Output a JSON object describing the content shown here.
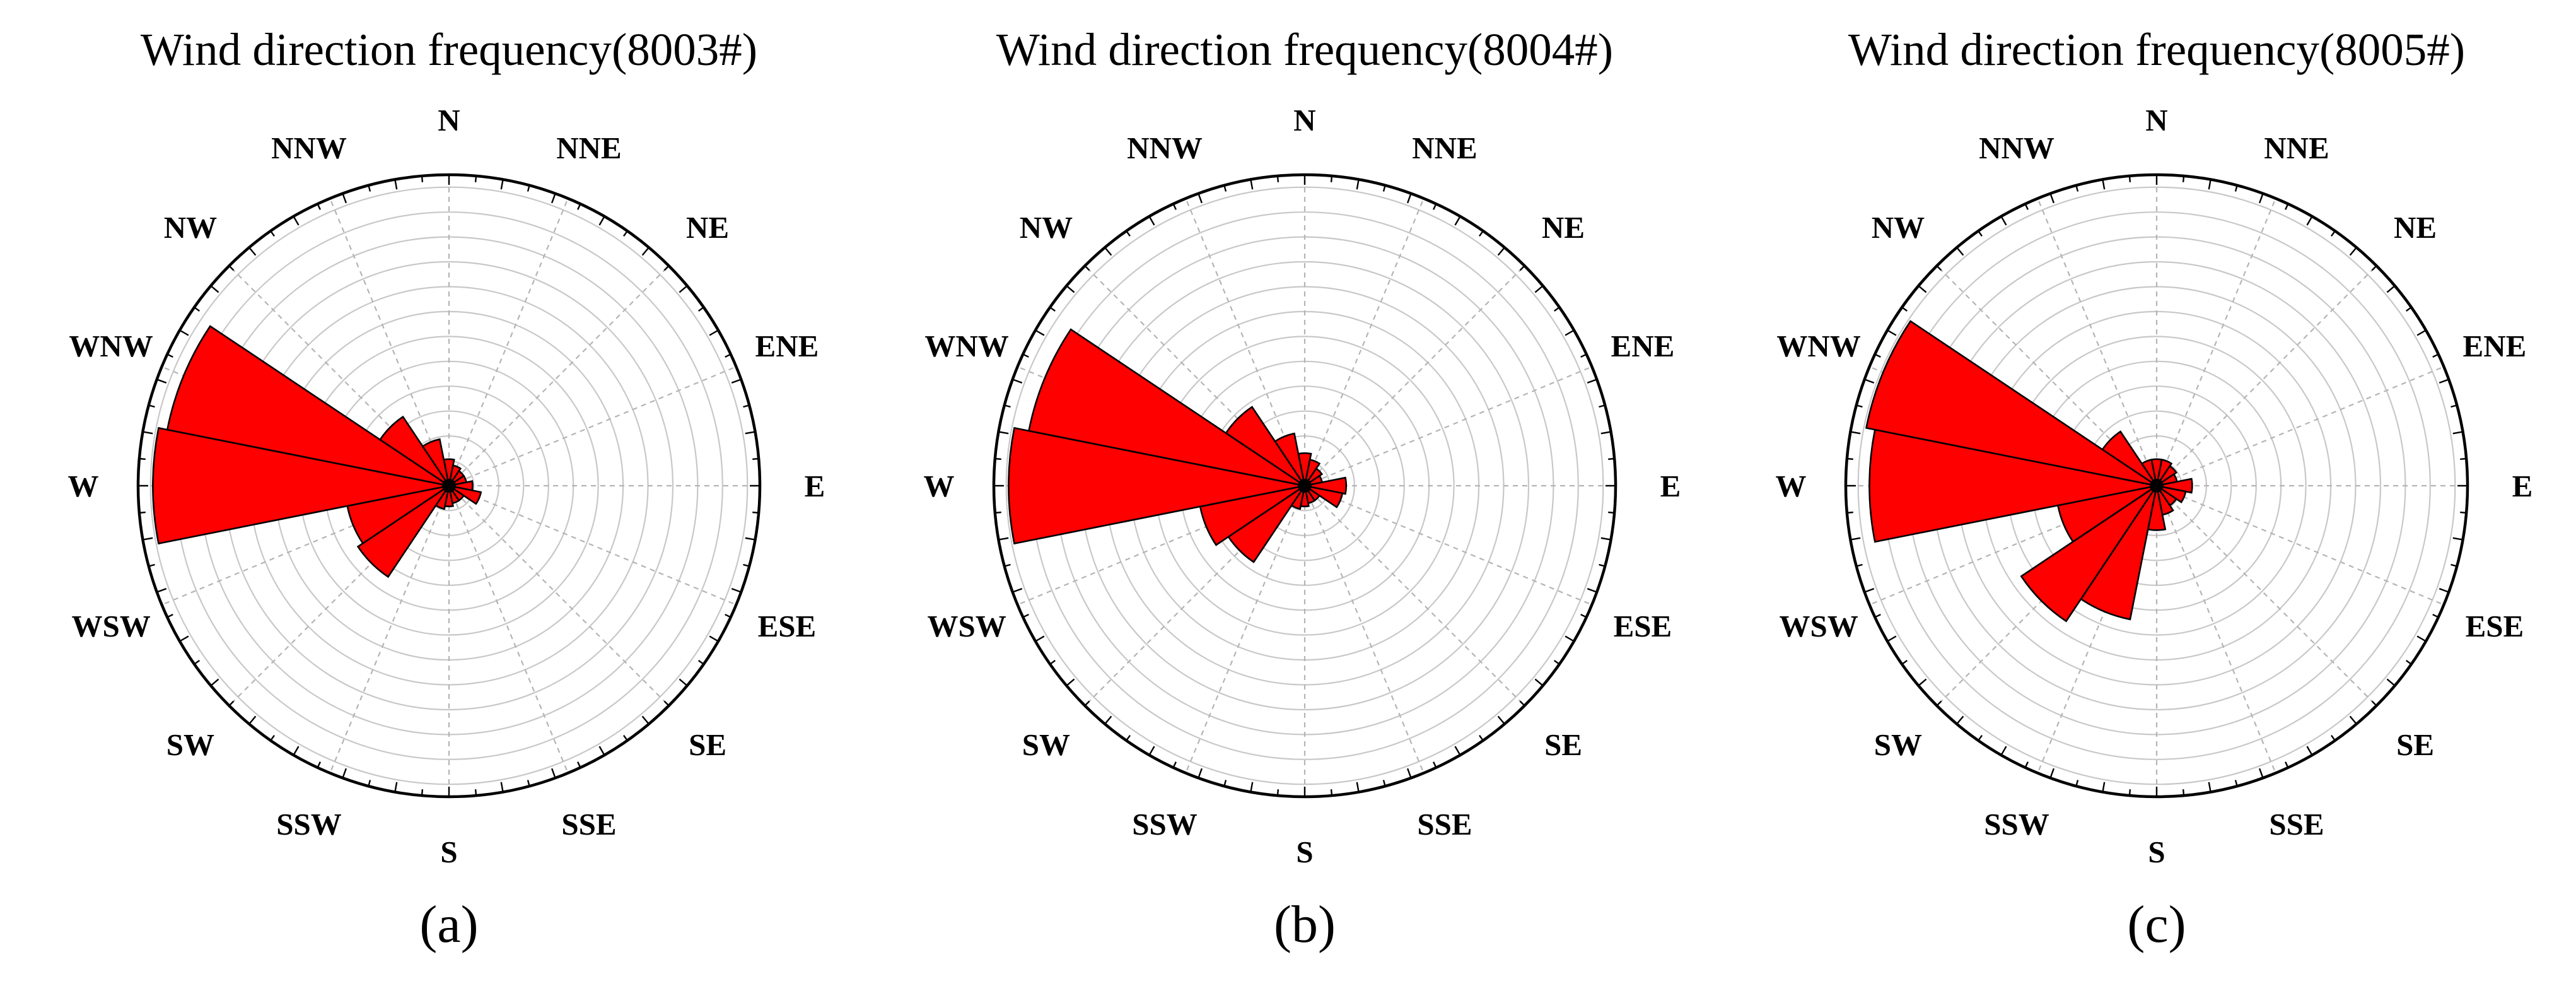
{
  "colors": {
    "petal": "#ff0000",
    "petal_edge": "#000000",
    "grid": "#c8c8c8",
    "spoke": "#b4b4b4",
    "frame": "#000000"
  },
  "chart_data": [
    {
      "type": "polar-bar",
      "title": "Wind direction frequency(8003#)",
      "panel_label": "(a)",
      "directions": [
        "N",
        "NNE",
        "NE",
        "ENE",
        "E",
        "ESE",
        "SE",
        "SSE",
        "S",
        "SSW",
        "SW",
        "WSW",
        "W",
        "WNW",
        "NW",
        "NNW"
      ],
      "values": [
        0.9,
        0.7,
        0.6,
        0.6,
        0.8,
        1.1,
        0.6,
        0.6,
        0.7,
        0.8,
        3.7,
        3.5,
        10.0,
        9.7,
        2.8,
        1.6
      ],
      "rlim": [
        0,
        10.5
      ],
      "ring_count": 12,
      "grid": true
    },
    {
      "type": "polar-bar",
      "title": "Wind direction frequency(8004#)",
      "panel_label": "(b)",
      "directions": [
        "N",
        "NNE",
        "NE",
        "ENE",
        "E",
        "ESE",
        "SE",
        "SSE",
        "S",
        "SSW",
        "SW",
        "WSW",
        "W",
        "WNW",
        "NW",
        "NNW"
      ],
      "values": [
        1.1,
        0.9,
        0.7,
        0.6,
        1.4,
        1.3,
        0.6,
        0.6,
        0.7,
        0.8,
        3.1,
        3.6,
        10.0,
        9.5,
        3.2,
        1.8
      ],
      "rlim": [
        0,
        10.5
      ],
      "ring_count": 12,
      "grid": true
    },
    {
      "type": "polar-bar",
      "title": "Wind direction frequency(8005#)",
      "panel_label": "(c)",
      "directions": [
        "N",
        "NNE",
        "NE",
        "ENE",
        "E",
        "ESE",
        "SE",
        "SSE",
        "S",
        "SSW",
        "SW",
        "WSW",
        "W",
        "WNW",
        "NW",
        "NNW"
      ],
      "values": [
        0.9,
        0.9,
        0.8,
        0.7,
        1.2,
        1.0,
        0.8,
        1.0,
        1.5,
        4.6,
        5.5,
        3.4,
        9.7,
        10.0,
        2.2,
        0.9
      ],
      "rlim": [
        0,
        10.5
      ],
      "ring_count": 12,
      "grid": true
    }
  ]
}
